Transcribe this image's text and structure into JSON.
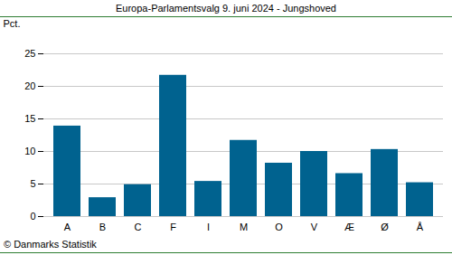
{
  "chart_data": {
    "type": "bar",
    "title": "Europa-Parlamentsvalg 9. juni 2024 - Jungshoved",
    "ylabel": "Pct.",
    "caption": "© Danmarks Statistik",
    "categories": [
      "A",
      "B",
      "C",
      "F",
      "I",
      "M",
      "O",
      "V",
      "Æ",
      "Ø",
      "Å"
    ],
    "values": [
      13.9,
      2.9,
      4.9,
      21.7,
      5.4,
      11.7,
      8.2,
      10.0,
      6.6,
      10.3,
      5.2
    ],
    "color": "#00628f",
    "ylim": [
      0,
      25
    ],
    "yticks": [
      0,
      5,
      10,
      15,
      20,
      25
    ],
    "grid": true
  }
}
